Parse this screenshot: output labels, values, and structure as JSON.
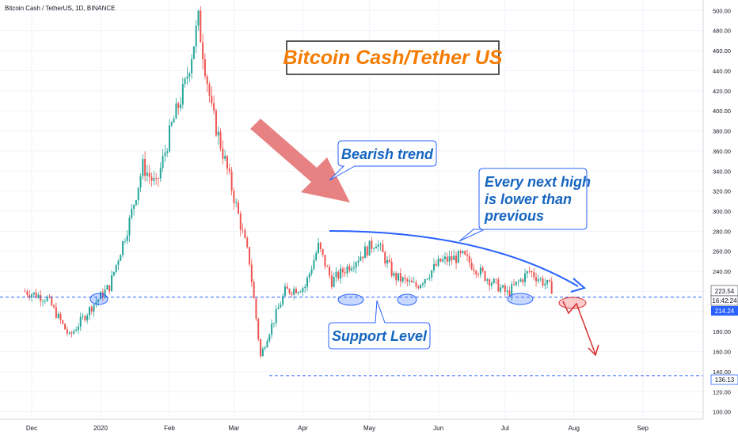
{
  "header": {
    "symbol_line": "Bitcoin Cash / TetherUS, 1D, BINANCE"
  },
  "annotations": {
    "title": "Bitcoin Cash/Tether US",
    "bearish": "Bearish trend",
    "lower_high_1": "Every next high",
    "lower_high_2": "is lower than",
    "lower_high_3": "previous",
    "support": "Support Level"
  },
  "price_badges": {
    "last_price": "223.54",
    "countdown": "16:42:24",
    "support_price": "214.24",
    "low_price": "136.13"
  },
  "colors": {
    "up": "#26a69a",
    "down": "#ef5350",
    "title_text": "#f57c00",
    "callout_text": "#1565c0",
    "trendline": "#2962ff",
    "support_line": "#2962ff",
    "forecast_arrow": "#d32f2f",
    "bear_arrow": "#e57373"
  },
  "chart_data": {
    "type": "candlestick",
    "y_ticks": [
      "500.00",
      "480.00",
      "460.00",
      "440.00",
      "420.00",
      "400.00",
      "380.00",
      "360.00",
      "340.00",
      "320.00",
      "300.00",
      "280.00",
      "260.00",
      "240.00",
      "220.00",
      "200.00",
      "180.00",
      "160.00",
      "140.00",
      "120.00",
      "100.00"
    ],
    "ylim": [
      95,
      505
    ],
    "x_ticks": [
      "Dec",
      "2020",
      "Feb",
      "Mar",
      "Apr",
      "May",
      "Jun",
      "Jul",
      "Aug",
      "Sep"
    ],
    "support_level": 214.24,
    "low_level": 136.13,
    "last_price": 223.54,
    "close_path": [
      [
        "2019-11-28",
        220
      ],
      [
        "2019-12-08",
        213
      ],
      [
        "2019-12-18",
        175
      ],
      [
        "2019-12-28",
        205
      ],
      [
        "2020-01-05",
        225
      ],
      [
        "2020-01-14",
        290
      ],
      [
        "2020-01-20",
        345
      ],
      [
        "2020-01-26",
        325
      ],
      [
        "2020-02-02",
        385
      ],
      [
        "2020-02-08",
        425
      ],
      [
        "2020-02-14",
        490
      ],
      [
        "2020-02-20",
        400
      ],
      [
        "2020-02-26",
        350
      ],
      [
        "2020-03-02",
        305
      ],
      [
        "2020-03-08",
        250
      ],
      [
        "2020-03-13",
        155
      ],
      [
        "2020-03-16",
        175
      ],
      [
        "2020-03-24",
        220
      ],
      [
        "2020-04-02",
        225
      ],
      [
        "2020-04-08",
        265
      ],
      [
        "2020-04-14",
        230
      ],
      [
        "2020-04-24",
        250
      ],
      [
        "2020-05-04",
        270
      ],
      [
        "2020-05-12",
        235
      ],
      [
        "2020-05-22",
        225
      ],
      [
        "2020-06-02",
        250
      ],
      [
        "2020-06-12",
        255
      ],
      [
        "2020-06-22",
        235
      ],
      [
        "2020-07-02",
        218
      ],
      [
        "2020-07-12",
        240
      ],
      [
        "2020-07-22",
        223
      ]
    ]
  }
}
